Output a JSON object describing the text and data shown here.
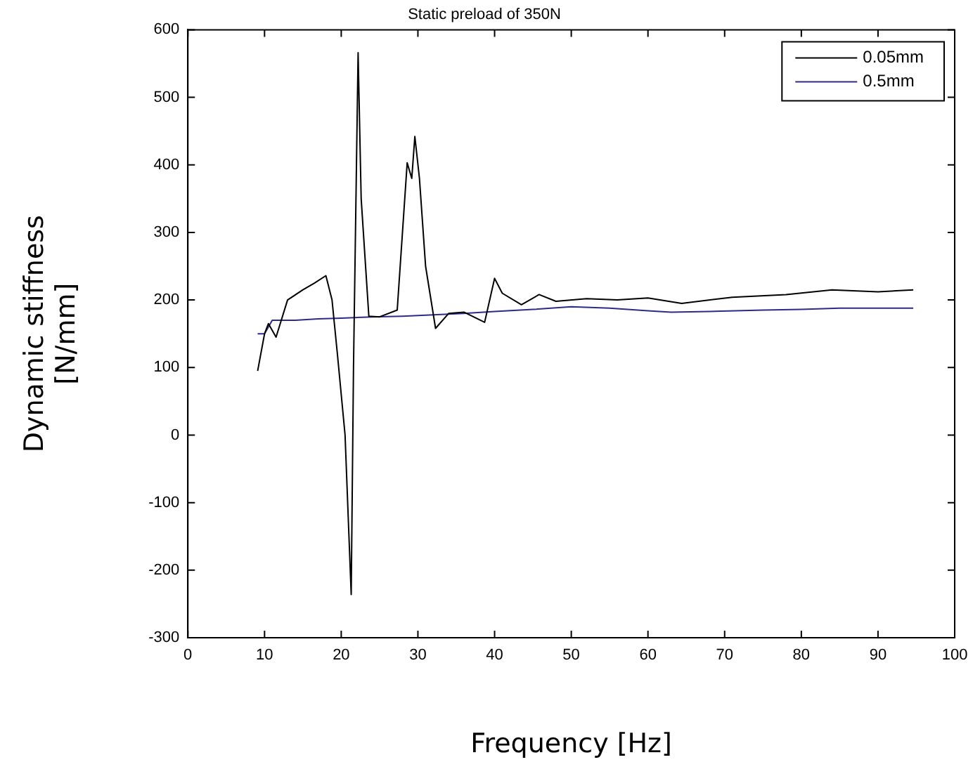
{
  "chart_data": {
    "type": "line",
    "title": "Static preload of 350N",
    "xlabel": "Frequency [Hz]",
    "ylabel": "Dynamic stiffness\n[N/mm]",
    "xlim": [
      0,
      100
    ],
    "xticks": [
      0,
      10,
      20,
      30,
      40,
      50,
      60,
      70,
      80,
      90,
      100
    ],
    "ylim": [
      -300,
      600
    ],
    "yticks": [
      -300,
      -200,
      -100,
      0,
      100,
      200,
      300,
      400,
      500,
      600
    ],
    "grid": false,
    "legend": "top right",
    "marker": "none",
    "line_style": "solid",
    "series": [
      {
        "name": "0.05mm",
        "color": "#000000",
        "x": [
          9.1,
          10,
          10.5,
          11.5,
          13,
          15,
          16.5,
          18,
          18.8,
          19.5,
          20.5,
          21.3,
          21.6,
          22.2,
          22.6,
          23.6,
          25,
          27.3,
          28.6,
          29.2,
          29.6,
          30.2,
          31,
          32.3,
          34,
          36,
          38.7,
          40,
          41,
          43.5,
          45.8,
          48,
          52,
          56,
          60,
          64.4,
          71,
          78,
          84,
          90,
          94.6
        ],
        "values": [
          95,
          150,
          165,
          145,
          200,
          215,
          225,
          236,
          200,
          120,
          0,
          -236,
          100,
          566,
          350,
          176,
          175,
          185,
          403,
          380,
          442,
          380,
          250,
          158,
          180,
          182,
          167,
          232,
          210,
          193,
          208,
          198,
          202,
          200,
          203,
          195,
          204,
          208,
          215,
          212,
          215
        ]
      },
      {
        "name": "0.5mm",
        "color": "#2b2b8c",
        "x": [
          9.1,
          10,
          11,
          14,
          17,
          20,
          24,
          28,
          32,
          36,
          40,
          45,
          50,
          55,
          60,
          63,
          68,
          75,
          80,
          85,
          90,
          94.6
        ],
        "values": [
          150,
          150,
          170,
          170,
          172,
          173,
          175,
          176,
          178,
          180,
          183,
          186,
          190,
          188,
          184,
          182,
          183,
          185,
          186,
          188,
          188,
          188
        ]
      }
    ]
  }
}
